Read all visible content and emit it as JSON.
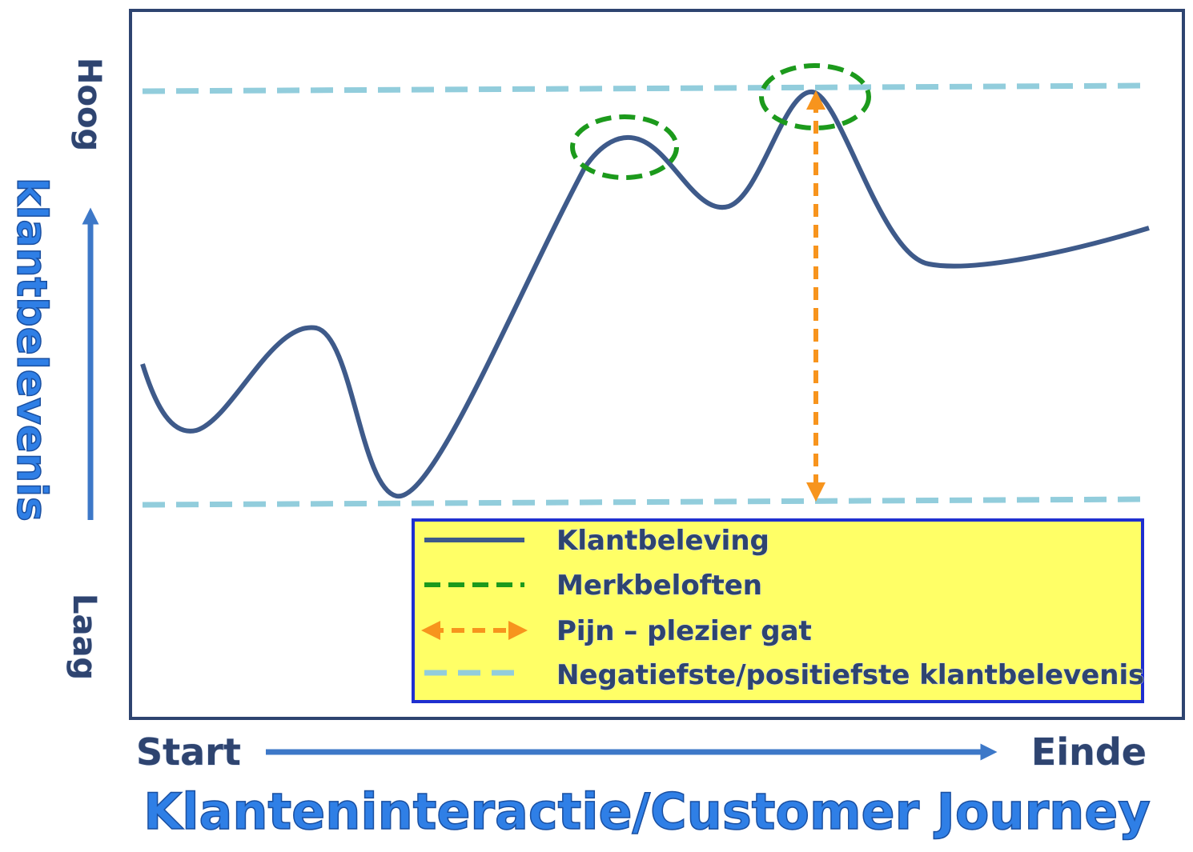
{
  "y_axis": {
    "high": "Hoog",
    "label": "klantbelevenis",
    "low": "Laag"
  },
  "x_axis": {
    "start": "Start",
    "end": "Einde",
    "label": "Klanteninteractie/Customer Journey"
  },
  "legend": {
    "items": [
      "Klantbeleving",
      "Merkbeloften",
      "Pijn – plezier gat",
      "Negatiefste/positiefste klantbelevenis"
    ]
  }
}
